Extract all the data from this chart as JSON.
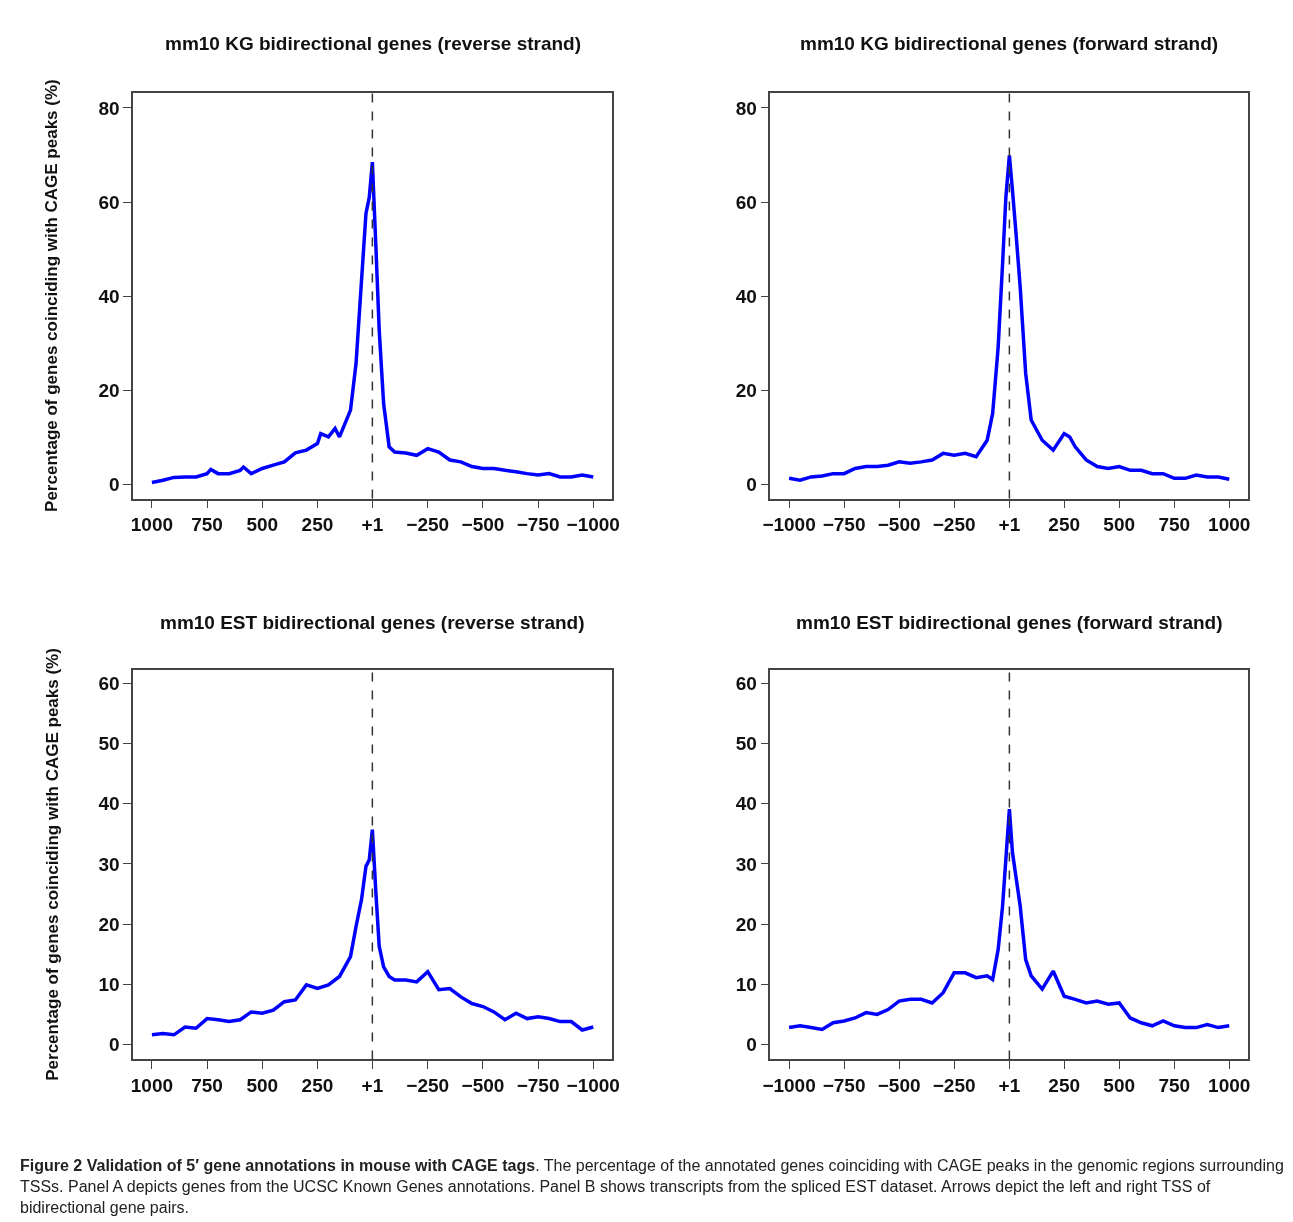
{
  "chart_data": [
    {
      "type": "line",
      "title": "mm10 KG bidirectional genes (reverse strand)",
      "ylabel": "Percentage of genes coinciding with CAGE peaks (%)",
      "xlim": [
        1085,
        -1085
      ],
      "ylim": [
        -3,
        83.2
      ],
      "xticks": [
        1000,
        750,
        500,
        250,
        {
          "value": 1,
          "label": "+1"
        },
        {
          "value": -250,
          "label": "−250"
        },
        {
          "value": -500,
          "label": "−500"
        },
        {
          "value": -750,
          "label": "−750"
        },
        {
          "value": -1000,
          "label": "−1000"
        }
      ],
      "yticks": [
        0,
        20,
        40,
        60,
        80
      ],
      "x": [
        1000,
        950,
        900,
        850,
        800,
        750,
        733,
        700,
        650,
        600,
        585,
        550,
        500,
        450,
        400,
        350,
        300,
        250,
        235,
        200,
        170,
        150,
        100,
        75,
        50,
        30,
        15,
        1,
        -15,
        -30,
        -50,
        -75,
        -100,
        -150,
        -200,
        -250,
        -300,
        -350,
        -400,
        -450,
        -500,
        -550,
        -600,
        -650,
        -700,
        -750,
        -800,
        -850,
        -900,
        -950,
        -1000
      ],
      "series": [
        {
          "color": "#0000ff",
          "values": [
            0.4,
            0.9,
            1.5,
            1.6,
            1.6,
            2.3,
            3.2,
            2.3,
            2.3,
            3.0,
            3.7,
            2.3,
            3.4,
            4.1,
            4.8,
            6.7,
            7.3,
            8.7,
            10.8,
            10.1,
            11.9,
            10.1,
            15.8,
            25.7,
            43.4,
            57.6,
            61,
            68.5,
            50.5,
            32.8,
            17.2,
            8,
            6.9,
            6.7,
            6.2,
            7.6,
            6.9,
            5.2,
            4.8,
            3.8,
            3.4,
            3.4,
            3.0,
            2.7,
            2.3,
            2.0,
            2.3,
            1.6,
            1.6,
            2.0,
            1.6
          ]
        }
      ],
      "ref_lines": [
        {
          "axis": "x",
          "value": 1,
          "color": "#333333",
          "line_style": "dashed"
        }
      ]
    },
    {
      "type": "line",
      "title": "mm10 KG bidirectional genes (forward strand)",
      "xlim": [
        -1085,
        1085
      ],
      "ylim": [
        -3,
        83.2
      ],
      "xticks": [
        {
          "value": -1000,
          "label": "−1000"
        },
        {
          "value": -750,
          "label": "−750"
        },
        {
          "value": -500,
          "label": "−500"
        },
        {
          "value": -250,
          "label": "−250"
        },
        {
          "value": 1,
          "label": "+1"
        },
        250,
        500,
        750,
        1000
      ],
      "yticks": [
        0,
        20,
        40,
        60,
        80
      ],
      "x": [
        -1000,
        -950,
        -900,
        -850,
        -800,
        -750,
        -700,
        -650,
        -600,
        -550,
        -500,
        -450,
        -400,
        -350,
        -300,
        -250,
        -200,
        -150,
        -100,
        -75,
        -50,
        -30,
        -15,
        1,
        15,
        30,
        50,
        75,
        100,
        150,
        200,
        250,
        275,
        300,
        350,
        400,
        450,
        500,
        550,
        600,
        650,
        700,
        750,
        800,
        850,
        900,
        950,
        1000
      ],
      "series": [
        {
          "color": "#0000ff",
          "values": [
            1.3,
            0.9,
            1.6,
            1.8,
            2.3,
            2.3,
            3.4,
            3.8,
            3.8,
            4.1,
            4.8,
            4.5,
            4.8,
            5.2,
            6.6,
            6.2,
            6.6,
            5.9,
            9.4,
            15.1,
            29.2,
            46.9,
            61,
            69.9,
            62.5,
            54,
            42,
            23.6,
            13.7,
            9.4,
            7.3,
            10.8,
            10.1,
            8,
            5.2,
            3.8,
            3.4,
            3.8,
            3.0,
            3.0,
            2.3,
            2.3,
            1.3,
            1.3,
            2.0,
            1.6,
            1.6,
            1.1
          ]
        }
      ],
      "ref_lines": [
        {
          "axis": "x",
          "value": 1,
          "color": "#333333",
          "line_style": "dashed"
        }
      ]
    },
    {
      "type": "line",
      "title": "mm10 EST bidirectional genes (reverse strand)",
      "ylabel": "Percentage of genes coinciding with CAGE peaks (%)",
      "xlim": [
        1085,
        -1085
      ],
      "ylim": [
        -2.5,
        62.3
      ],
      "xticks": [
        1000,
        750,
        500,
        250,
        {
          "value": 1,
          "label": "+1"
        },
        {
          "value": -250,
          "label": "−250"
        },
        {
          "value": -500,
          "label": "−500"
        },
        {
          "value": -750,
          "label": "−750"
        },
        {
          "value": -1000,
          "label": "−1000"
        }
      ],
      "yticks": [
        0,
        10,
        20,
        30,
        40,
        50,
        60
      ],
      "x": [
        1000,
        950,
        900,
        850,
        800,
        750,
        700,
        650,
        600,
        550,
        500,
        450,
        400,
        350,
        300,
        250,
        200,
        150,
        100,
        75,
        50,
        30,
        15,
        1,
        -15,
        -30,
        -50,
        -75,
        -100,
        -150,
        -200,
        -250,
        -300,
        -350,
        -400,
        -450,
        -500,
        -550,
        -600,
        -650,
        -700,
        -750,
        -800,
        -850,
        -900,
        -950,
        -1000
      ],
      "series": [
        {
          "color": "#0000ff",
          "values": [
            1.6,
            1.8,
            1.6,
            2.9,
            2.7,
            4.3,
            4.1,
            3.8,
            4.1,
            5.4,
            5.2,
            5.7,
            7.1,
            7.4,
            9.9,
            9.3,
            9.9,
            11.3,
            14.6,
            19.6,
            24.1,
            29.6,
            30.7,
            35.7,
            25.2,
            16.3,
            12.9,
            11.3,
            10.7,
            10.7,
            10.4,
            12.1,
            9.1,
            9.3,
            7.9,
            6.8,
            6.3,
            5.4,
            4.1,
            5.2,
            4.3,
            4.6,
            4.3,
            3.8,
            3.8,
            2.4,
            2.9
          ]
        }
      ],
      "ref_lines": [
        {
          "axis": "x",
          "value": 1,
          "color": "#333333",
          "line_style": "dashed"
        }
      ]
    },
    {
      "type": "line",
      "title": "mm10 EST bidirectional genes (forward strand)",
      "xlim": [
        -1085,
        1085
      ],
      "ylim": [
        -2.5,
        62.3
      ],
      "xticks": [
        {
          "value": -1000,
          "label": "−1000"
        },
        {
          "value": -750,
          "label": "−750"
        },
        {
          "value": -500,
          "label": "−500"
        },
        {
          "value": -250,
          "label": "−250"
        },
        {
          "value": 1,
          "label": "+1"
        },
        250,
        500,
        750,
        1000
      ],
      "yticks": [
        0,
        10,
        20,
        30,
        40,
        50,
        60
      ],
      "x": [
        -1000,
        -950,
        -900,
        -850,
        -800,
        -750,
        -700,
        -650,
        -600,
        -550,
        -500,
        -450,
        -400,
        -350,
        -300,
        -250,
        -200,
        -150,
        -100,
        -75,
        -50,
        -30,
        -15,
        1,
        15,
        30,
        50,
        75,
        100,
        150,
        200,
        250,
        300,
        350,
        400,
        450,
        500,
        550,
        600,
        650,
        700,
        750,
        800,
        850,
        900,
        950,
        1000
      ],
      "series": [
        {
          "color": "#0000ff",
          "values": [
            2.8,
            3.1,
            2.8,
            2.5,
            3.6,
            3.9,
            4.4,
            5.3,
            5.0,
            5.8,
            7.2,
            7.5,
            7.5,
            6.9,
            8.6,
            11.9,
            11.9,
            11.1,
            11.4,
            10.8,
            15.8,
            23.0,
            30.8,
            39.1,
            31.9,
            28.1,
            23.0,
            14.1,
            11.4,
            9.2,
            12.2,
            8.0,
            7.5,
            6.9,
            7.2,
            6.7,
            6.9,
            4.4,
            3.6,
            3.1,
            3.9,
            3.1,
            2.8,
            2.8,
            3.3,
            2.8,
            3.1
          ]
        }
      ],
      "ref_lines": [
        {
          "axis": "x",
          "value": 1,
          "color": "#333333",
          "line_style": "dashed"
        }
      ],
      "annotations": [
        "Figure 2 Validation of 5′ gene annotations in mouse with CAGE tags",
        ". The percentage of the annotated genes coinciding with CAGE peaks in the genomic regions surrounding TSSs. Panel A depicts genes from the UCSC Known Genes annotations. Panel B shows transcripts from the spliced EST dataset. Arrows depict the left and right TSS of bidirectional gene pairs."
      ]
    }
  ]
}
